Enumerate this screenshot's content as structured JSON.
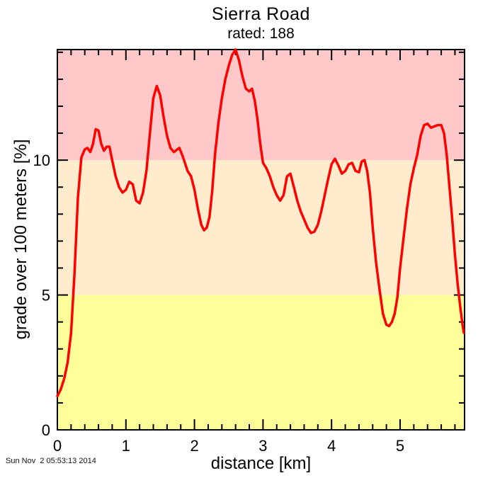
{
  "header": {
    "title": "Sierra Road",
    "subtitle": "rated: 188"
  },
  "footer": {
    "timestamp": "Sun Nov  2 05:53:13 2014"
  },
  "chart_data": {
    "type": "line",
    "title": "Sierra Road",
    "subtitle": "rated: 188",
    "xlabel": "distance [km]",
    "ylabel": "grade over 100 meters [%]",
    "xlim": [
      0,
      5.94
    ],
    "ylim": [
      0,
      14.1
    ],
    "x_major_ticks": [
      0,
      1,
      2,
      3,
      4,
      5
    ],
    "x_minor_step": 0.2,
    "y_major_ticks": [
      0,
      5,
      10
    ],
    "y_minor_step": 1,
    "grid": false,
    "legend": "none",
    "frame_color": "#000000",
    "line_color": "#ff0000",
    "line_width": 3.5,
    "bands": [
      {
        "from": 0,
        "to": 5,
        "color": "#ffff99"
      },
      {
        "from": 5,
        "to": 10,
        "color": "#ffeccc"
      },
      {
        "from": 10,
        "to": 14.1,
        "color": "#ffc9c9"
      }
    ],
    "series": [
      {
        "name": "grade",
        "x": [
          0.0,
          0.05,
          0.1,
          0.15,
          0.2,
          0.25,
          0.3,
          0.35,
          0.4,
          0.44,
          0.48,
          0.52,
          0.56,
          0.6,
          0.64,
          0.68,
          0.72,
          0.76,
          0.8,
          0.85,
          0.9,
          0.95,
          1.0,
          1.05,
          1.1,
          1.15,
          1.2,
          1.25,
          1.3,
          1.35,
          1.4,
          1.45,
          1.5,
          1.55,
          1.6,
          1.65,
          1.7,
          1.75,
          1.78,
          1.82,
          1.86,
          1.9,
          1.95,
          2.0,
          2.05,
          2.1,
          2.14,
          2.18,
          2.22,
          2.26,
          2.3,
          2.35,
          2.4,
          2.45,
          2.5,
          2.55,
          2.6,
          2.65,
          2.7,
          2.75,
          2.8,
          2.84,
          2.88,
          2.92,
          2.96,
          3.0,
          3.05,
          3.1,
          3.15,
          3.2,
          3.25,
          3.3,
          3.35,
          3.4,
          3.45,
          3.5,
          3.55,
          3.6,
          3.65,
          3.7,
          3.75,
          3.8,
          3.85,
          3.9,
          3.95,
          4.0,
          4.05,
          4.1,
          4.15,
          4.2,
          4.25,
          4.3,
          4.35,
          4.4,
          4.44,
          4.48,
          4.52,
          4.56,
          4.6,
          4.65,
          4.7,
          4.75,
          4.8,
          4.84,
          4.88,
          4.92,
          4.96,
          5.0,
          5.05,
          5.1,
          5.15,
          5.2,
          5.25,
          5.3,
          5.35,
          5.4,
          5.45,
          5.5,
          5.55,
          5.6,
          5.64,
          5.68,
          5.72,
          5.76,
          5.8,
          5.84,
          5.88,
          5.91,
          5.93
        ],
        "y": [
          1.25,
          1.5,
          1.9,
          2.5,
          3.6,
          5.8,
          8.6,
          10.1,
          10.4,
          10.45,
          10.3,
          10.6,
          11.15,
          11.1,
          10.6,
          10.35,
          10.5,
          10.5,
          10.0,
          9.4,
          9.0,
          8.8,
          8.9,
          9.2,
          9.1,
          8.5,
          8.4,
          8.8,
          9.6,
          11.0,
          12.3,
          12.75,
          12.4,
          11.6,
          10.9,
          10.45,
          10.3,
          10.4,
          10.45,
          10.2,
          9.9,
          9.6,
          9.4,
          8.9,
          8.2,
          7.6,
          7.4,
          7.5,
          7.9,
          8.9,
          10.2,
          11.4,
          12.3,
          13.0,
          13.5,
          13.9,
          14.1,
          13.7,
          13.1,
          12.65,
          12.55,
          12.65,
          12.2,
          11.5,
          10.6,
          9.9,
          9.7,
          9.4,
          9.0,
          8.7,
          8.5,
          8.7,
          9.4,
          9.5,
          9.0,
          8.5,
          8.1,
          7.8,
          7.5,
          7.3,
          7.35,
          7.6,
          8.1,
          8.7,
          9.3,
          9.85,
          10.05,
          9.8,
          9.5,
          9.6,
          9.85,
          9.9,
          9.6,
          9.55,
          9.95,
          10.0,
          9.6,
          8.8,
          7.5,
          6.2,
          5.2,
          4.3,
          3.9,
          3.85,
          4.0,
          4.3,
          4.9,
          6.0,
          7.1,
          8.2,
          9.1,
          9.7,
          10.2,
          10.9,
          11.3,
          11.35,
          11.2,
          11.25,
          11.3,
          11.3,
          11.0,
          10.2,
          9.0,
          7.8,
          6.5,
          5.4,
          4.5,
          3.9,
          3.6
        ]
      }
    ]
  }
}
